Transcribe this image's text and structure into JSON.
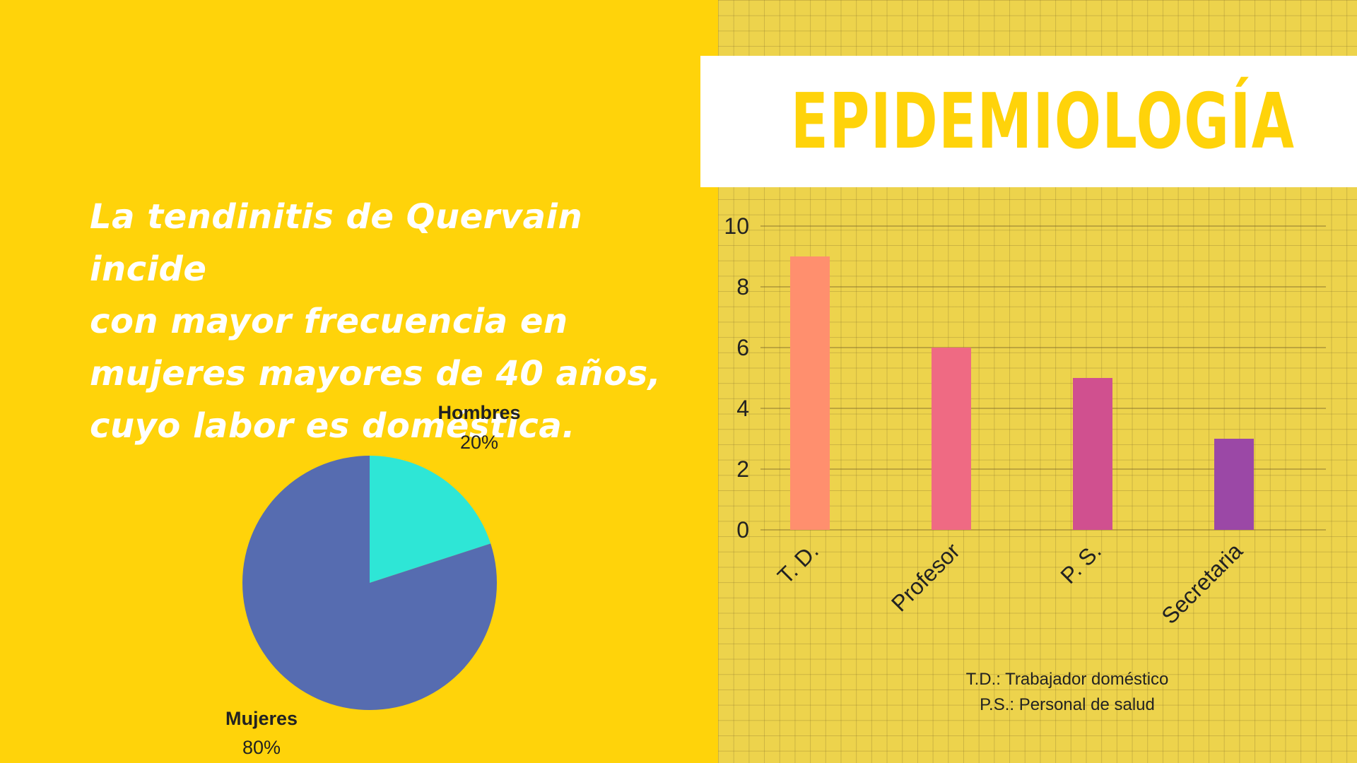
{
  "title": "EPIDEMIOLOGÍA",
  "description": [
    "La tendinitis de Quervain incide",
    "con mayor frecuencia en",
    "mujeres mayores de 40 años,",
    "cuyo labor es doméstica."
  ],
  "footnotes": [
    "T.D.: Trabajador doméstico",
    "P.S.: Personal de salud"
  ],
  "colors": {
    "background": "#FFD30A",
    "title_text": "#FFD30A",
    "description_text": "#FFFFFF"
  },
  "chart_data": [
    {
      "type": "pie",
      "categories": [
        "Hombres",
        "Mujeres"
      ],
      "values": [
        20,
        80
      ],
      "value_labels": [
        "20%",
        "80%"
      ],
      "colors": [
        "#2EE6D6",
        "#566CB0"
      ]
    },
    {
      "type": "bar",
      "categories": [
        "T. D.",
        "Profesor",
        "P. S.",
        "Secretaria"
      ],
      "values": [
        9,
        6,
        5,
        3
      ],
      "colors": [
        "#FF8F6E",
        "#EF6A83",
        "#D0508F",
        "#9B48A6"
      ],
      "yticks": [
        "0",
        "2",
        "4",
        "6",
        "8",
        "10"
      ],
      "ylim": [
        0,
        10
      ],
      "grid": true
    }
  ]
}
